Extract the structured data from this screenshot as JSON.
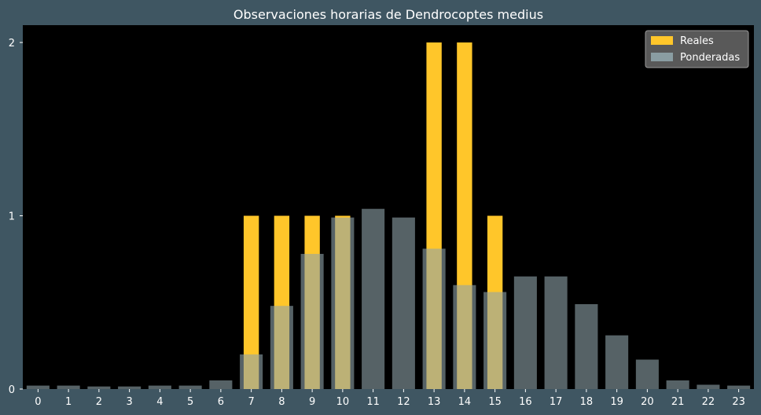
{
  "chart_data": {
    "type": "bar",
    "title": "Observaciones horarias de Dendrocoptes medius",
    "xlabel": "",
    "ylabel": "",
    "categories": [
      "0",
      "1",
      "2",
      "3",
      "4",
      "5",
      "6",
      "7",
      "8",
      "9",
      "10",
      "11",
      "12",
      "13",
      "14",
      "15",
      "16",
      "17",
      "18",
      "19",
      "20",
      "21",
      "22",
      "23"
    ],
    "ylim": [
      0,
      2.1
    ],
    "yticks": [
      "0",
      "1",
      "2"
    ],
    "grid": false,
    "legend_position": "top-right",
    "series": [
      {
        "name": "Reales",
        "color": "#ffc62a",
        "values": [
          0,
          0,
          0,
          0,
          0,
          0,
          0,
          1,
          1,
          1,
          1,
          0,
          0,
          2,
          2,
          1,
          0,
          0,
          0,
          0,
          0,
          0,
          0,
          0
        ]
      },
      {
        "name": "Ponderadas",
        "color": "#8fa4aa",
        "values": [
          0.02,
          0.02,
          0.015,
          0.015,
          0.02,
          0.02,
          0.05,
          0.2,
          0.48,
          0.78,
          0.99,
          1.04,
          0.99,
          0.81,
          0.6,
          0.56,
          0.65,
          0.65,
          0.49,
          0.31,
          0.17,
          0.05,
          0.025,
          0.02
        ]
      }
    ],
    "colors": {
      "background": "#3f5662",
      "plot_area": "#000000",
      "legend_box": "#595959",
      "text": "#ffffff"
    }
  }
}
